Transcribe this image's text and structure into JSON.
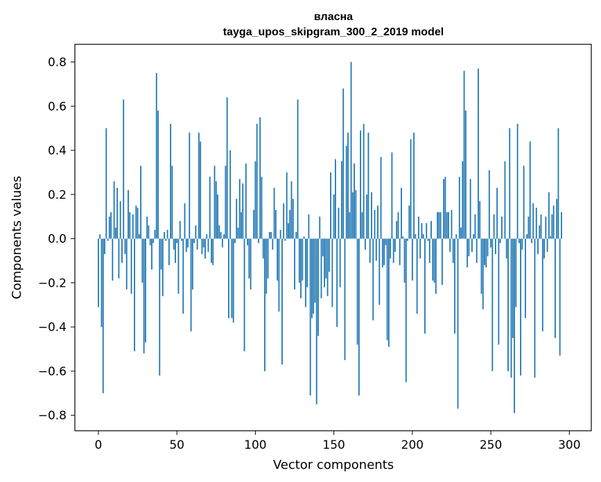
{
  "chart_data": {
    "type": "bar",
    "title_line1": "власна",
    "title_line2": "tayga_upos_skipgram_300_2_2019 model",
    "xlabel": "Vector components",
    "ylabel": "Components values",
    "xlim": [
      -15,
      314
    ],
    "ylim": [
      -0.87,
      0.88
    ],
    "xticks": [
      0,
      50,
      100,
      150,
      200,
      250,
      300
    ],
    "xtick_labels": [
      "0",
      "50",
      "100",
      "150",
      "200",
      "250",
      "300"
    ],
    "yticks": [
      -0.8,
      -0.6,
      -0.4,
      -0.2,
      0.0,
      0.2,
      0.4,
      0.6,
      0.8
    ],
    "ytick_labels": [
      "−0.8",
      "−0.6",
      "−0.4",
      "−0.2",
      "0.0",
      "0.2",
      "0.4",
      "0.6",
      "0.8"
    ],
    "bar_color": "#1f77b4",
    "grid": false,
    "values": [
      -0.31,
      0.02,
      -0.4,
      -0.7,
      -0.07,
      0.5,
      -0.01,
      0.1,
      0.12,
      -0.19,
      0.26,
      0.05,
      0.23,
      -0.18,
      0.17,
      -0.11,
      0.63,
      -0.07,
      -0.23,
      0.22,
      0.12,
      -0.25,
      0.11,
      -0.51,
      0.15,
      0.14,
      0.02,
      0.33,
      -0.2,
      -0.52,
      -0.47,
      0.1,
      0.06,
      -0.03,
      -0.14,
      -0.02,
      0.04,
      0.75,
      0.58,
      -0.62,
      -0.14,
      -0.26,
      0.03,
      -0.01,
      0.04,
      -0.12,
      0.52,
      0.33,
      -0.05,
      -0.11,
      -0.02,
      -0.25,
      0.08,
      -0.01,
      -0.34,
      0.16,
      -0.06,
      -0.04,
      0.48,
      -0.42,
      -0.23,
      -0.02,
      0.06,
      -0.05,
      0.48,
      0.44,
      -0.07,
      -0.04,
      -0.09,
      0.02,
      -0.06,
      0.28,
      -0.11,
      -0.12,
      0.33,
      0.26,
      0.2,
      0.06,
      0.03,
      -0.04,
      0.02,
      0.33,
      0.64,
      -0.36,
      0.4,
      -0.36,
      -0.38,
      -0.02,
      0.18,
      0.05,
      0.27,
      0.12,
      0.25,
      -0.51,
      0.34,
      -0.03,
      -0.18,
      -0.23,
      0.0,
      0.13,
      0.35,
      0.52,
      -0.02,
      0.55,
      0.28,
      -0.09,
      -0.6,
      -0.25,
      -0.18,
      0.03,
      0.03,
      -0.05,
      0.23,
      0.13,
      -0.19,
      -0.33,
      0.04,
      -0.57,
      0.16,
      -0.01,
      0.3,
      0.07,
      0.13,
      0.26,
      0.18,
      -0.23,
      0.03,
      0.63,
      -0.2,
      -0.27,
      -0.19,
      0.01,
      -0.31,
      -0.22,
      0.11,
      -0.71,
      -0.36,
      -0.34,
      -0.29,
      -0.75,
      -0.44,
      0.1,
      -0.27,
      -0.08,
      -0.22,
      -0.18,
      -0.26,
      -0.15,
      0.3,
      -0.31,
      0.2,
      0.36,
      -0.4,
      0.14,
      -0.22,
      0.35,
      0.68,
      -0.55,
      0.42,
      0.48,
      0.12,
      0.8,
      0.21,
      0.34,
      0.22,
      -0.48,
      -0.71,
      0.49,
      0.12,
      0.52,
      -0.05,
      0.2,
      0.48,
      -0.11,
      0.21,
      -0.37,
      0.13,
      -0.1,
      0.15,
      -0.3,
      0.37,
      -0.13,
      -0.12,
      -0.03,
      -0.46,
      -0.49,
      -0.09,
      0.39,
      -0.11,
      -0.06,
      0.08,
      0.12,
      -0.12,
      0.23,
      0.01,
      -0.2,
      -0.65,
      -0.01,
      0.15,
      0.45,
      -0.19,
      0.48,
      0.02,
      -0.34,
      0.1,
      -0.09,
      0.07,
      0.02,
      -0.43,
      0.07,
      -0.01,
      -0.11,
      0.08,
      -0.19,
      -0.2,
      -0.25,
      0.12,
      0.12,
      0.12,
      -0.21,
      0.27,
      0.28,
      0.12,
      0.12,
      -0.06,
      0.13,
      -0.11,
      -0.43,
      0.02,
      -0.77,
      0.28,
      0.05,
      0.35,
      0.76,
      0.58,
      -0.13,
      -0.08,
      0.27,
      -0.06,
      0.02,
      0.11,
      -0.11,
      0.77,
      0.17,
      -0.25,
      -0.32,
      -0.12,
      -0.13,
      -0.08,
      0.31,
      -0.04,
      -0.6,
      0.11,
      -0.07,
      0.23,
      -0.48,
      -0.02,
      0.1,
      0.0,
      0.35,
      -0.09,
      -0.6,
      0.5,
      -0.63,
      -0.45,
      -0.79,
      -0.31,
      0.52,
      -0.02,
      -0.62,
      -0.05,
      0.33,
      -0.36,
      0.02,
      0.1,
      0.44,
      -0.02,
      0.16,
      -0.63,
      0.14,
      -0.07,
      0.06,
      0.11,
      -0.42,
      -0.09,
      0.1,
      -0.06,
      0.21,
      0.01,
      0.11,
      0.15,
      -0.45,
      0.18,
      0.5,
      -0.53,
      0.12
    ]
  }
}
